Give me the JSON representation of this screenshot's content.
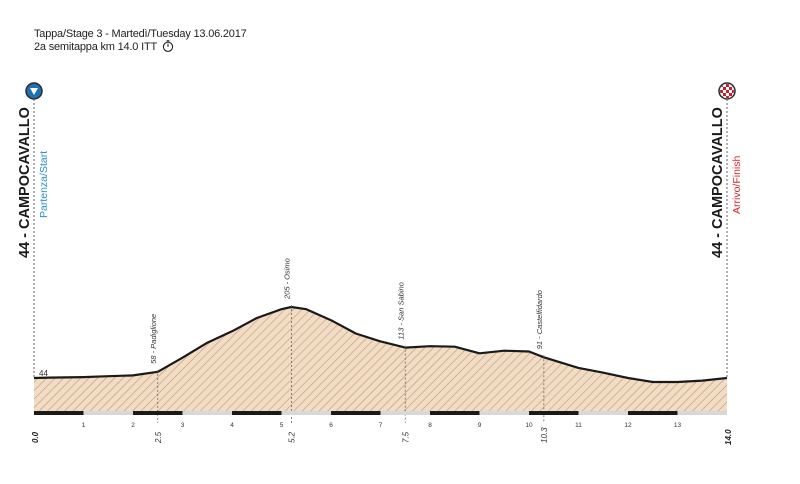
{
  "header": {
    "line1": "Tappa/Stage 3 - Martedì/Tuesday  13.06.2017",
    "line2": "2a semitappa km 14.0 ITT"
  },
  "start": {
    "name": "44 - CAMPOCAVALLO",
    "label": "Partenza/Start",
    "icon": "start-marker-icon"
  },
  "finish": {
    "name": "44 - CAMPOCAVALLO",
    "label": "Arrivo/Finish",
    "icon": "finish-checkered-flag-icon"
  },
  "colors": {
    "fill": "#f2dcc4",
    "hatch": "#b89a7c",
    "outline": "#1a1a1a",
    "start_label": "#2a8fcf",
    "finish_label": "#d0282c",
    "guide": "#666666"
  },
  "chart_data": {
    "type": "area",
    "xlim": [
      0,
      14
    ],
    "ylim": [
      0,
      240
    ],
    "profile": [
      {
        "km": 0.0,
        "alt": 44
      },
      {
        "km": 0.3,
        "alt": 45
      },
      {
        "km": 1.0,
        "alt": 46
      },
      {
        "km": 1.5,
        "alt": 48
      },
      {
        "km": 2.0,
        "alt": 50
      },
      {
        "km": 2.5,
        "alt": 58
      },
      {
        "km": 3.0,
        "alt": 90
      },
      {
        "km": 3.5,
        "alt": 124
      },
      {
        "km": 4.0,
        "alt": 150
      },
      {
        "km": 4.5,
        "alt": 180
      },
      {
        "km": 5.0,
        "alt": 200
      },
      {
        "km": 5.2,
        "alt": 205
      },
      {
        "km": 5.5,
        "alt": 200
      },
      {
        "km": 6.0,
        "alt": 175
      },
      {
        "km": 6.5,
        "alt": 145
      },
      {
        "km": 7.0,
        "alt": 127
      },
      {
        "km": 7.5,
        "alt": 113
      },
      {
        "km": 8.0,
        "alt": 116
      },
      {
        "km": 8.5,
        "alt": 115
      },
      {
        "km": 9.0,
        "alt": 100
      },
      {
        "km": 9.5,
        "alt": 106
      },
      {
        "km": 10.0,
        "alt": 104
      },
      {
        "km": 10.3,
        "alt": 91
      },
      {
        "km": 11.0,
        "alt": 67
      },
      {
        "km": 11.5,
        "alt": 56
      },
      {
        "km": 12.0,
        "alt": 44
      },
      {
        "km": 12.5,
        "alt": 35
      },
      {
        "km": 13.0,
        "alt": 35
      },
      {
        "km": 13.5,
        "alt": 38
      },
      {
        "km": 14.0,
        "alt": 44
      }
    ],
    "annotations": [
      {
        "km": 2.5,
        "label": "58 - Padiglione",
        "km_label": "2.5"
      },
      {
        "km": 5.2,
        "label": "205 - Osimo",
        "km_label": "5.2"
      },
      {
        "km": 7.5,
        "label": "113 - San Sabino",
        "km_label": "7.5"
      },
      {
        "km": 10.3,
        "label": "91 - Castelfidardo",
        "km_label": "10.3"
      }
    ],
    "start_alt_label": "44",
    "x_ticks": [
      "1",
      "2",
      "3",
      "4",
      "5",
      "6",
      "7",
      "8",
      "9",
      "10",
      "11",
      "12",
      "13"
    ],
    "x_tick_values": [
      1,
      2,
      3,
      4,
      5,
      6,
      7,
      8,
      9,
      10,
      11,
      12,
      13
    ],
    "x_start_label": "0.0",
    "x_end_label": "14.0"
  }
}
